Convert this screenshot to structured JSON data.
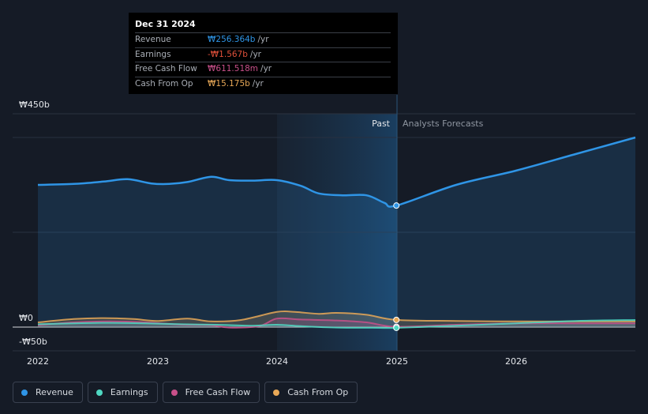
{
  "chart_data": {
    "type": "area",
    "currency_symbol": "₩",
    "y_axis": {
      "ylim": [
        -50,
        450
      ],
      "tick_labels": [
        "₩450b",
        "₩0",
        "-₩50b"
      ],
      "unit": "b"
    },
    "x_axis": {
      "tick_labels": [
        "2022",
        "2023",
        "2024",
        "2025",
        "2026"
      ],
      "xlim": [
        2022,
        2027
      ]
    },
    "sections": {
      "past_label": "Past",
      "forecast_label": "Analysts Forecasts",
      "divider_x": 2025.0
    },
    "series": [
      {
        "name": "Revenue",
        "color": "#2f95e6",
        "fill": true,
        "points": [
          [
            2022.0,
            300
          ],
          [
            2022.3,
            302
          ],
          [
            2022.55,
            307
          ],
          [
            2022.75,
            312
          ],
          [
            2022.95,
            303
          ],
          [
            2023.1,
            302
          ],
          [
            2023.25,
            306
          ],
          [
            2023.45,
            317
          ],
          [
            2023.6,
            310
          ],
          [
            2023.8,
            309
          ],
          [
            2024.0,
            310
          ],
          [
            2024.2,
            298
          ],
          [
            2024.35,
            282
          ],
          [
            2024.55,
            278
          ],
          [
            2024.75,
            278
          ],
          [
            2024.9,
            262
          ],
          [
            2025.0,
            256.4
          ],
          [
            2025.5,
            300
          ],
          [
            2026.0,
            330
          ],
          [
            2026.5,
            365
          ],
          [
            2027.0,
            400
          ]
        ],
        "forecast_from": 2025.0
      },
      {
        "name": "Earnings",
        "color": "#4fd8c2",
        "fill": true,
        "points": [
          [
            2022.0,
            6
          ],
          [
            2022.3,
            8
          ],
          [
            2022.6,
            9
          ],
          [
            2022.9,
            8
          ],
          [
            2023.2,
            6
          ],
          [
            2023.5,
            5
          ],
          [
            2023.8,
            3
          ],
          [
            2024.0,
            5
          ],
          [
            2024.2,
            2
          ],
          [
            2024.5,
            -1
          ],
          [
            2024.8,
            -1.5
          ],
          [
            2025.0,
            -1.6
          ],
          [
            2025.5,
            3
          ],
          [
            2026.0,
            8
          ],
          [
            2026.5,
            13
          ],
          [
            2027.0,
            15
          ]
        ],
        "forecast_from": 2025.0
      },
      {
        "name": "Free Cash Flow",
        "color": "#c8508a",
        "fill": true,
        "points": [
          [
            2022.0,
            4
          ],
          [
            2022.3,
            10
          ],
          [
            2022.6,
            12
          ],
          [
            2022.9,
            10
          ],
          [
            2023.2,
            5
          ],
          [
            2023.45,
            4
          ],
          [
            2023.6,
            -1
          ],
          [
            2023.85,
            2
          ],
          [
            2024.0,
            18
          ],
          [
            2024.2,
            16
          ],
          [
            2024.5,
            14
          ],
          [
            2024.75,
            10
          ],
          [
            2025.0,
            0.6
          ],
          [
            2025.5,
            5
          ],
          [
            2026.0,
            8
          ],
          [
            2026.5,
            8
          ],
          [
            2027.0,
            8
          ]
        ],
        "forecast_from": 2025.0
      },
      {
        "name": "Cash From Op",
        "color": "#e8a857",
        "fill": true,
        "points": [
          [
            2022.0,
            10
          ],
          [
            2022.3,
            17
          ],
          [
            2022.55,
            19
          ],
          [
            2022.8,
            17
          ],
          [
            2023.0,
            13
          ],
          [
            2023.25,
            18
          ],
          [
            2023.45,
            12
          ],
          [
            2023.7,
            15
          ],
          [
            2024.0,
            32
          ],
          [
            2024.15,
            32
          ],
          [
            2024.35,
            28
          ],
          [
            2024.5,
            30
          ],
          [
            2024.75,
            26
          ],
          [
            2025.0,
            15.2
          ],
          [
            2025.5,
            13
          ],
          [
            2026.0,
            12
          ],
          [
            2026.5,
            12
          ],
          [
            2027.0,
            12
          ]
        ],
        "forecast_from": 2025.0
      }
    ]
  },
  "tooltip": {
    "date": "Dec 31 2024",
    "rows": [
      {
        "label": "Revenue",
        "value": "₩256.364b",
        "unit": "/yr",
        "color": "#2f95e6"
      },
      {
        "label": "Earnings",
        "value": "-₩1.567b",
        "unit": "/yr",
        "color": "#e0503a"
      },
      {
        "label": "Free Cash Flow",
        "value": "₩611.518m",
        "unit": "/yr",
        "color": "#c8508a"
      },
      {
        "label": "Cash From Op",
        "value": "₩15.175b",
        "unit": "/yr",
        "color": "#e8a857"
      }
    ]
  },
  "legend": [
    {
      "label": "Revenue",
      "color": "#2f95e6"
    },
    {
      "label": "Earnings",
      "color": "#4fd8c2"
    },
    {
      "label": "Free Cash Flow",
      "color": "#c8508a"
    },
    {
      "label": "Cash From Op",
      "color": "#e8a857"
    }
  ]
}
